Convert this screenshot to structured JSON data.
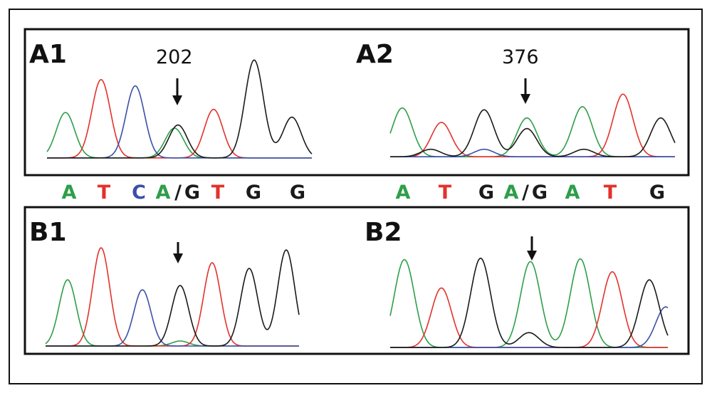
{
  "colors": {
    "A": "#2e9e4a",
    "T": "#e3322b",
    "C": "#3b4fa8",
    "G": "#1a1a1a",
    "slash": "#1a1a1a"
  },
  "panels": {
    "a1": {
      "label": "A1",
      "position": "202"
    },
    "a2": {
      "label": "A2",
      "position": "376"
    },
    "b1": {
      "label": "B1"
    },
    "b2": {
      "label": "B2"
    }
  },
  "sequence_left": [
    "A",
    "T",
    "C",
    "A",
    "/",
    "G",
    "T",
    "G",
    "G"
  ],
  "sequence_right": [
    "A",
    "T",
    "G",
    "A",
    "/",
    "G",
    "A",
    "T",
    "G"
  ],
  "traces": {
    "A1": [
      {
        "base": "A",
        "peaks": [
          [
            92,
            0.58
          ],
          [
            245,
            0.38
          ],
          [
            243,
            0
          ]
        ]
      },
      {
        "base": "T",
        "peaks": [
          [
            142,
            1.0
          ],
          [
            300,
            0.62
          ]
        ]
      },
      {
        "base": "C",
        "peaks": [
          [
            190,
            0.92
          ]
        ]
      },
      {
        "base": "G",
        "peaks": [
          [
            250,
            0.42
          ],
          [
            357,
            1.25
          ],
          [
            410,
            0.52
          ]
        ]
      }
    ],
    "A2": [
      {
        "base": "A",
        "peaks": [
          [
            565,
            0.78
          ],
          [
            740,
            0.62
          ],
          [
            818,
            0.8
          ]
        ]
      },
      {
        "base": "T",
        "peaks": [
          [
            620,
            0.55
          ],
          [
            875,
            1.0
          ]
        ]
      },
      {
        "base": "C",
        "peaks": [
          [
            680,
            0.12
          ]
        ]
      },
      {
        "base": "G",
        "peaks": [
          [
            605,
            0.12
          ],
          [
            680,
            0.75
          ],
          [
            740,
            0.45
          ],
          [
            820,
            0.12
          ],
          [
            928,
            0.62
          ]
        ]
      }
    ],
    "B1": [
      {
        "base": "A",
        "peaks": [
          [
            95,
            0.93
          ],
          [
            253,
            0.07
          ]
        ]
      },
      {
        "base": "T",
        "peaks": [
          [
            142,
            1.38
          ],
          [
            298,
            1.17
          ]
        ]
      },
      {
        "base": "C",
        "peaks": [
          [
            200,
            0.79
          ]
        ]
      },
      {
        "base": "G",
        "peaks": [
          [
            253,
            0.85
          ],
          [
            350,
            1.09
          ],
          [
            402,
            1.35
          ]
        ]
      }
    ],
    "B2": [
      {
        "base": "A",
        "peaks": [
          [
            568,
            1.3
          ],
          [
            745,
            1.27
          ],
          [
            815,
            1.31
          ]
        ]
      },
      {
        "base": "T",
        "peaks": [
          [
            620,
            0.88
          ],
          [
            860,
            1.12
          ]
        ]
      },
      {
        "base": "C",
        "peaks": [
          [
            935,
            0.6
          ]
        ]
      },
      {
        "base": "G",
        "peaks": [
          [
            675,
            1.32
          ],
          [
            743,
            0.22
          ],
          [
            912,
            1.0
          ]
        ]
      }
    ]
  }
}
